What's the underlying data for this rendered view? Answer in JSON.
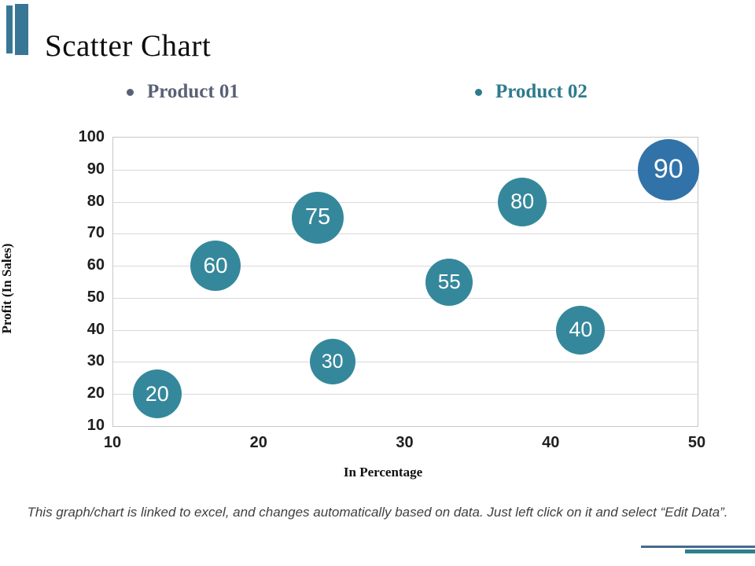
{
  "slide": {
    "title": "Scatter Chart",
    "footer": "This graph/chart is linked to excel, and changes automatically based on data. Just left click on it and select “Edit Data”.",
    "accent_bar_color": "#377795",
    "bottom_line_color": "#46688F",
    "bottom_bar_color": "#2E7F8F"
  },
  "legend": {
    "items": [
      {
        "label": "Product 01",
        "color": "#5A6076"
      },
      {
        "label": "Product 02",
        "color": "#2E7B8D"
      }
    ]
  },
  "chart_data": {
    "type": "scatter",
    "title": "",
    "xlabel": "In Percentage",
    "ylabel": "Profit  (In Sales)",
    "xlim": [
      10,
      50
    ],
    "ylim": [
      10,
      100
    ],
    "x_ticks": [
      10,
      20,
      30,
      40,
      50
    ],
    "y_ticks": [
      10,
      20,
      30,
      40,
      50,
      60,
      70,
      80,
      90,
      100
    ],
    "grid": "horizontal",
    "gridline_color": "#d9d9d9",
    "legend_position": "top",
    "series": [
      {
        "name": "Product 01",
        "color": "#3173A9",
        "points": [
          {
            "x": 48,
            "y": 90,
            "label": "90",
            "bubble_radius": 39
          }
        ]
      },
      {
        "name": "Product 02",
        "color": "#35889B",
        "points": [
          {
            "x": 13,
            "y": 20,
            "label": "20",
            "bubble_radius": 31
          },
          {
            "x": 17,
            "y": 60,
            "label": "60",
            "bubble_radius": 32
          },
          {
            "x": 24,
            "y": 75,
            "label": "75",
            "bubble_radius": 33
          },
          {
            "x": 25,
            "y": 30,
            "label": "30",
            "bubble_radius": 29
          },
          {
            "x": 33,
            "y": 55,
            "label": "55",
            "bubble_radius": 30
          },
          {
            "x": 38,
            "y": 80,
            "label": "80",
            "bubble_radius": 31
          },
          {
            "x": 42,
            "y": 40,
            "label": "40",
            "bubble_radius": 31
          }
        ]
      }
    ]
  }
}
